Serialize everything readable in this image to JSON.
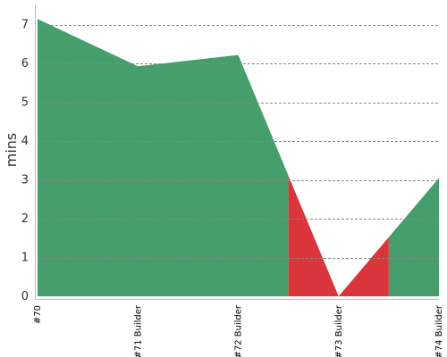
{
  "chart_data": {
    "type": "area",
    "title": "",
    "xlabel": "",
    "ylabel": "mins",
    "categories": [
      "#70",
      "#71 Builder",
      "#72 Builder",
      "#73 Builder",
      "#74 Builder"
    ],
    "values": [
      7.15,
      5.93,
      6.22,
      0.0,
      3.05
    ],
    "ylim": [
      0,
      7.5
    ],
    "yticks": [
      0,
      1,
      2,
      3,
      4,
      5,
      6,
      7
    ],
    "grid": "horizontal-dashed",
    "legend": "none",
    "bands": [
      {
        "from": 0,
        "to": 2.5,
        "status": "success",
        "color": "#459e6b"
      },
      {
        "from": 2.5,
        "to": 3.5,
        "status": "failure",
        "color": "#d9353a"
      },
      {
        "from": 3.5,
        "to": 4,
        "status": "success",
        "color": "#459e6b"
      }
    ],
    "colors": {
      "success": "#459e6b",
      "failure": "#d9353a",
      "grid": "#888888",
      "axis": "#bbbbbb"
    }
  }
}
